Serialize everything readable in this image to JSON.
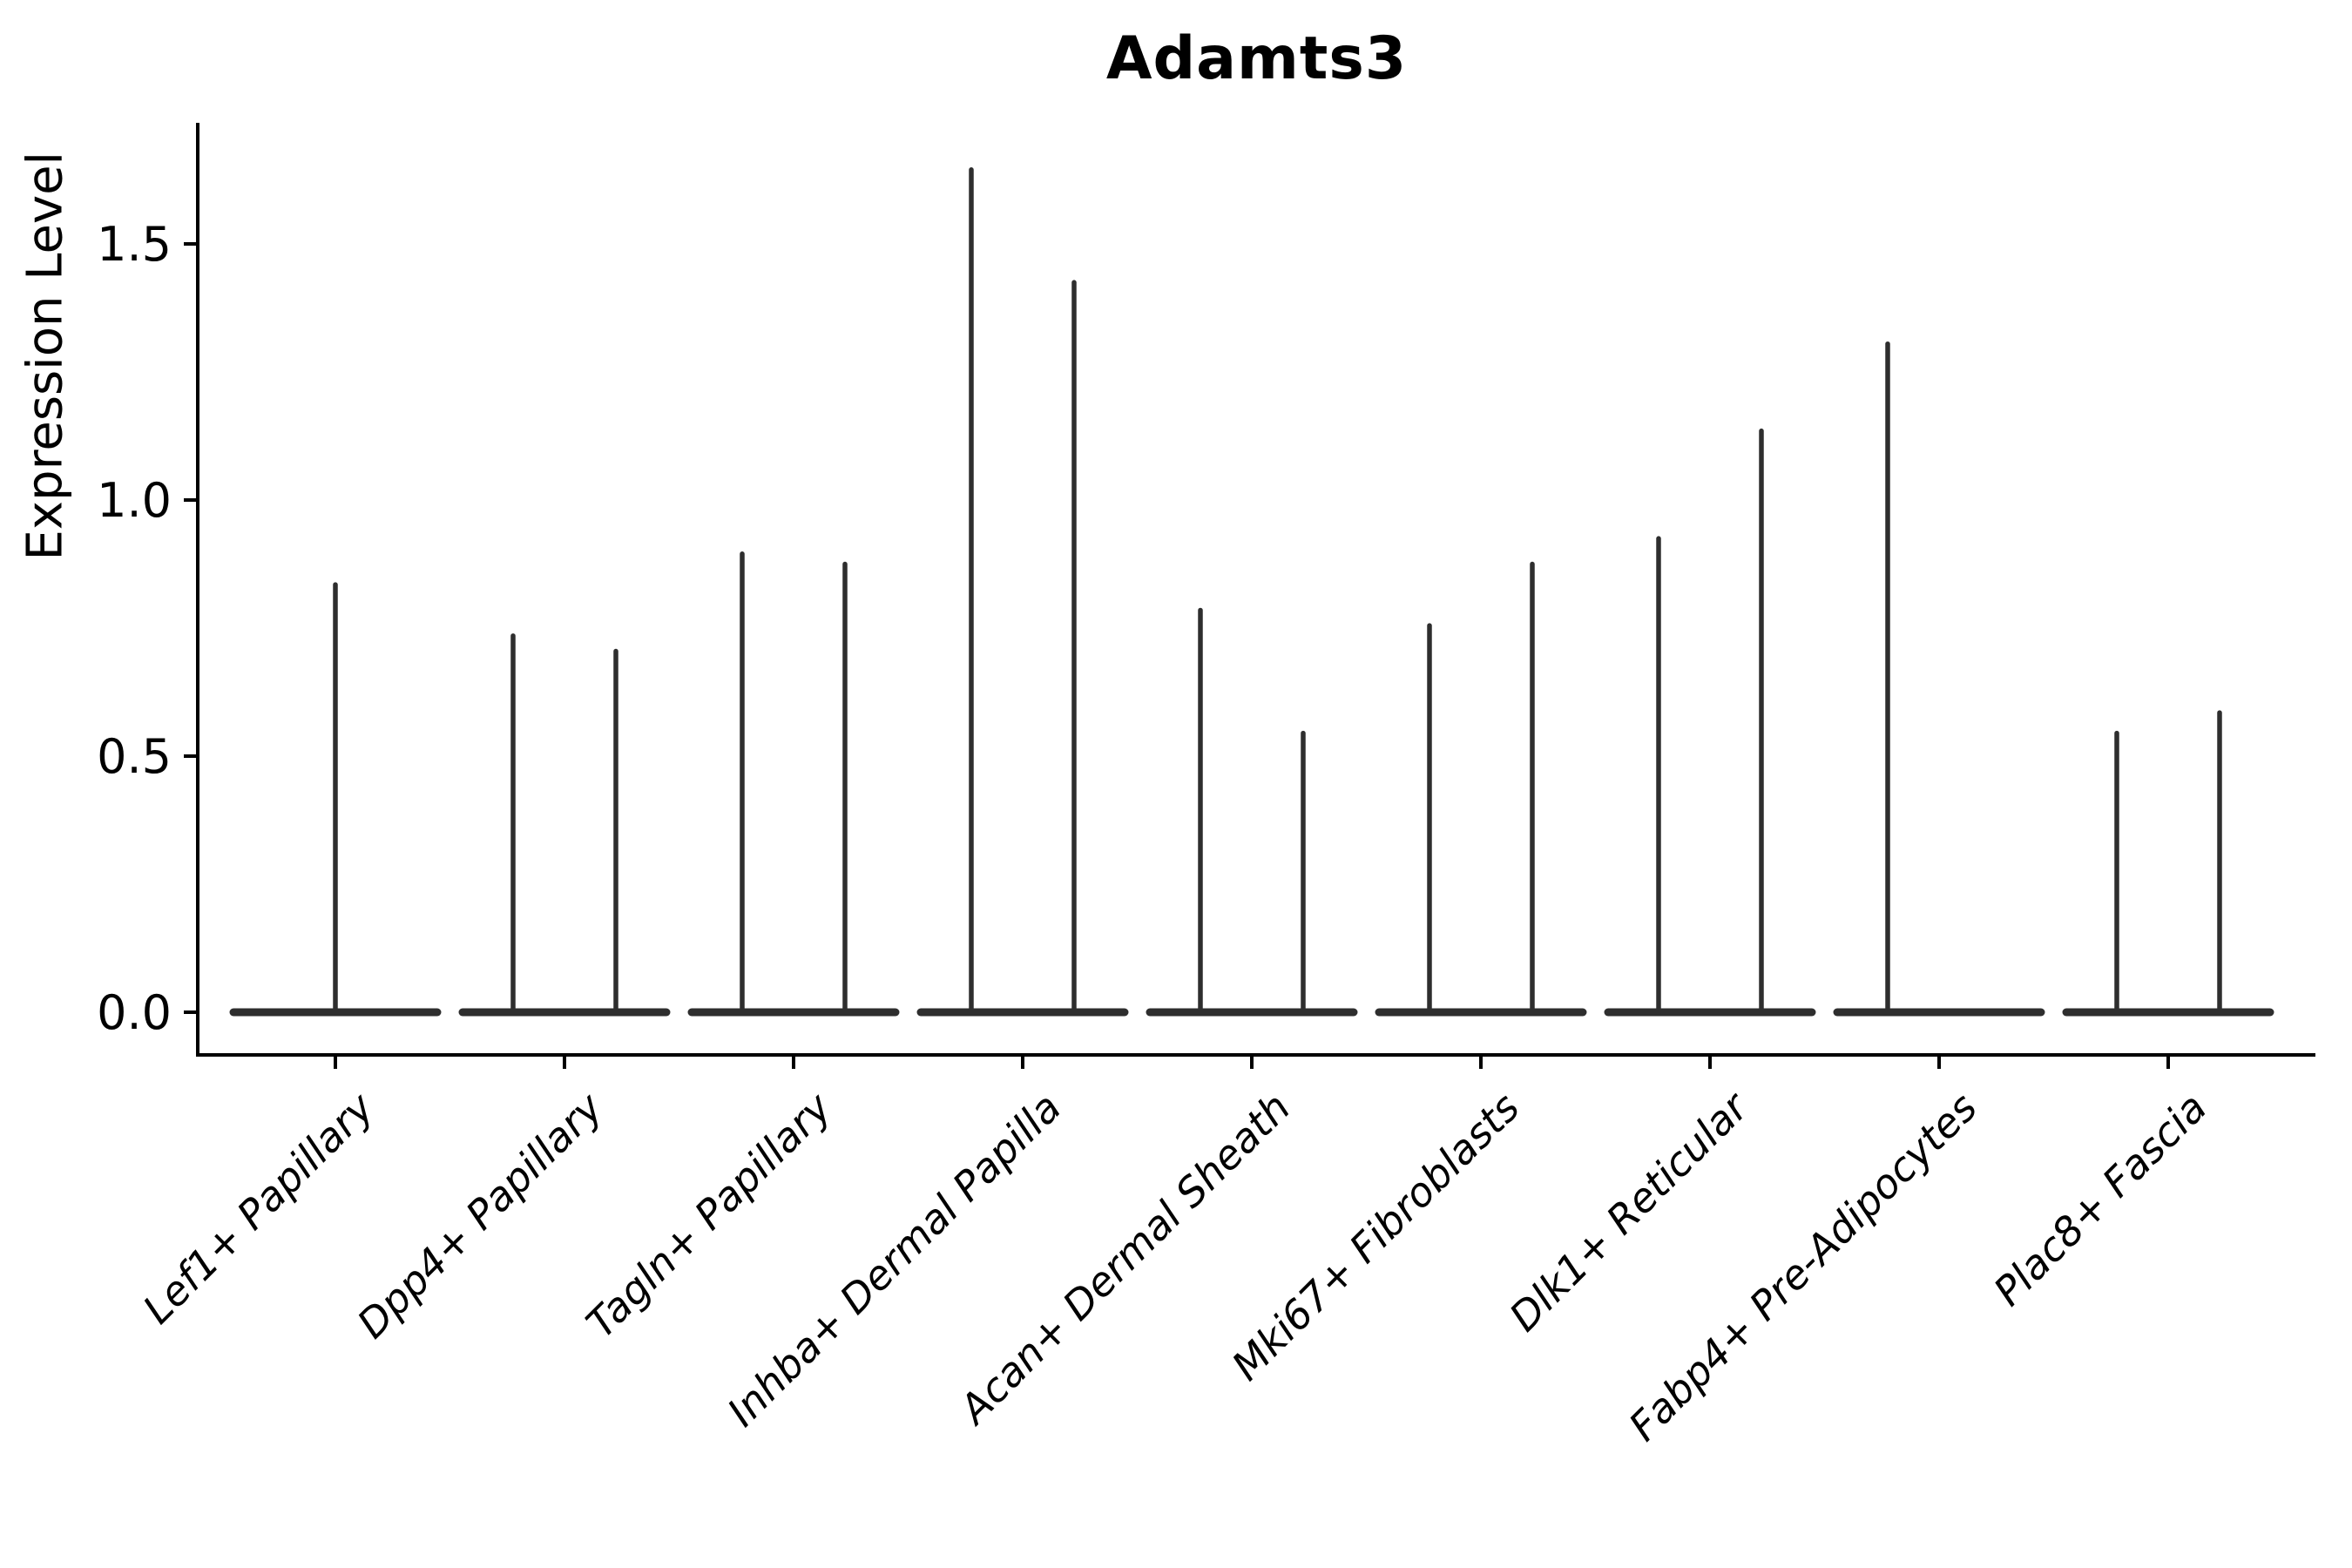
{
  "figure": {
    "title": "Adamts3",
    "background": "#ffffff"
  },
  "axis": {
    "ylabel": "Expression Level",
    "ytick_labels": [
      "0.0",
      "0.5",
      "1.0",
      "1.5"
    ]
  },
  "chart_data": {
    "type": "violin",
    "title": "Adamts3",
    "xlabel": "",
    "ylabel": "Expression Level",
    "ylim": [
      -0.08,
      1.74
    ],
    "yticks": [
      0,
      0.5,
      1.0,
      1.5
    ],
    "ytick_labels": [
      "0.0",
      "0.5",
      "1.0",
      "1.5"
    ],
    "grid": false,
    "legend": "none",
    "description": "Single-cell expression violin plot; each violin is collapsed to a flat base at 0 with thin spikes rising to the maximum expression value",
    "categories": [
      "Lef1+ Papillary",
      "Dpp4+ Papillary",
      "Tagln+ Papillary",
      "Inhba+ Dermal Papilla",
      "Acan+ Dermal Sheath",
      "Mki67+ Fibroblasts",
      "Dlk1+ Reticular",
      "Fabp4+ Pre-Adipocytes",
      "Plac8+ Fascia"
    ],
    "baseline_value": 0.0,
    "violins": [
      {
        "category": "Lef1+ Papillary",
        "spikes": [
          {
            "slot": "center",
            "max": 0.84
          }
        ]
      },
      {
        "category": "Dpp4+ Papillary",
        "spikes": [
          {
            "slot": "left",
            "max": 0.74
          },
          {
            "slot": "right",
            "max": 0.71
          }
        ]
      },
      {
        "category": "Tagln+ Papillary",
        "spikes": [
          {
            "slot": "left",
            "max": 0.9
          },
          {
            "slot": "right",
            "max": 0.88
          }
        ]
      },
      {
        "category": "Inhba+ Dermal Papilla",
        "spikes": [
          {
            "slot": "left",
            "max": 1.65
          },
          {
            "slot": "right",
            "max": 1.43
          }
        ]
      },
      {
        "category": "Acan+ Dermal Sheath",
        "spikes": [
          {
            "slot": "left",
            "max": 0.79
          },
          {
            "slot": "right",
            "max": 0.55
          }
        ]
      },
      {
        "category": "Mki67+ Fibroblasts",
        "spikes": [
          {
            "slot": "left",
            "max": 0.76
          },
          {
            "slot": "right",
            "max": 0.88
          }
        ]
      },
      {
        "category": "Dlk1+ Reticular",
        "spikes": [
          {
            "slot": "left",
            "max": 0.93
          },
          {
            "slot": "right",
            "max": 1.14
          }
        ]
      },
      {
        "category": "Fabp4+ Pre-Adipocytes",
        "spikes": [
          {
            "slot": "left",
            "max": 1.31
          }
        ]
      },
      {
        "category": "Plac8+ Fascia",
        "spikes": [
          {
            "slot": "left",
            "max": 0.55
          },
          {
            "slot": "right",
            "max": 0.59
          }
        ]
      }
    ]
  },
  "colors": {
    "violin_line": "#2e2e2e",
    "axis": "#000000",
    "text": "#000000",
    "background": "#ffffff"
  }
}
